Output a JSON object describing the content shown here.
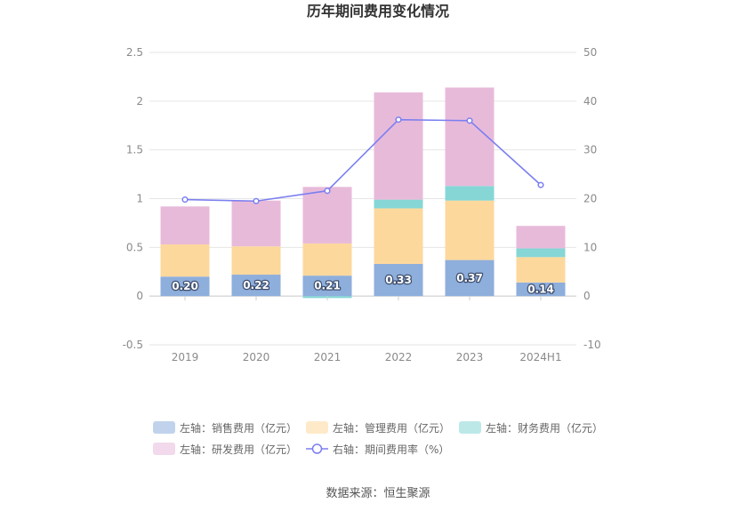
{
  "chart_data": {
    "type": "bar",
    "title": "历年期间费用变化情况",
    "source": "数据来源：恒生聚源",
    "categories": [
      "2019",
      "2020",
      "2021",
      "2022",
      "2023",
      "2024H1"
    ],
    "left_axis": {
      "min": -0.5,
      "max": 2.5,
      "ticks": [
        "-0.5",
        "0",
        "0.5",
        "1",
        "1.5",
        "2",
        "2.5"
      ]
    },
    "right_axis": {
      "min": -10,
      "max": 50,
      "ticks": [
        "-10",
        "0",
        "10",
        "20",
        "30",
        "40",
        "50"
      ]
    },
    "stacked": true,
    "series": [
      {
        "name": "左轴：销售费用（亿元）",
        "axis": "left",
        "color": "#8eaedc",
        "values": [
          0.2,
          0.22,
          0.21,
          0.33,
          0.37,
          0.14
        ],
        "labels": [
          "0.20",
          "0.22",
          "0.21",
          "0.33",
          "0.37",
          "0.14"
        ]
      },
      {
        "name": "左轴：管理费用（亿元）",
        "axis": "left",
        "color": "#fdd89c",
        "values": [
          0.33,
          0.29,
          0.33,
          0.57,
          0.61,
          0.26
        ]
      },
      {
        "name": "左轴：财务费用（亿元）",
        "axis": "left",
        "color": "#86d6d6",
        "values": [
          0.0,
          0.0,
          -0.02,
          0.09,
          0.15,
          0.09
        ]
      },
      {
        "name": "左轴：研发费用（亿元）",
        "axis": "left",
        "color": "#e8bada",
        "values": [
          0.39,
          0.47,
          0.58,
          1.1,
          1.01,
          0.23
        ]
      }
    ],
    "line_series": {
      "name": "右轴：期间费用率（%）",
      "axis": "right",
      "color": "#7b7ff0",
      "values": [
        19.8,
        19.5,
        21.6,
        36.2,
        36.0,
        22.8
      ]
    },
    "legend_position": "bottom",
    "grid": true
  }
}
